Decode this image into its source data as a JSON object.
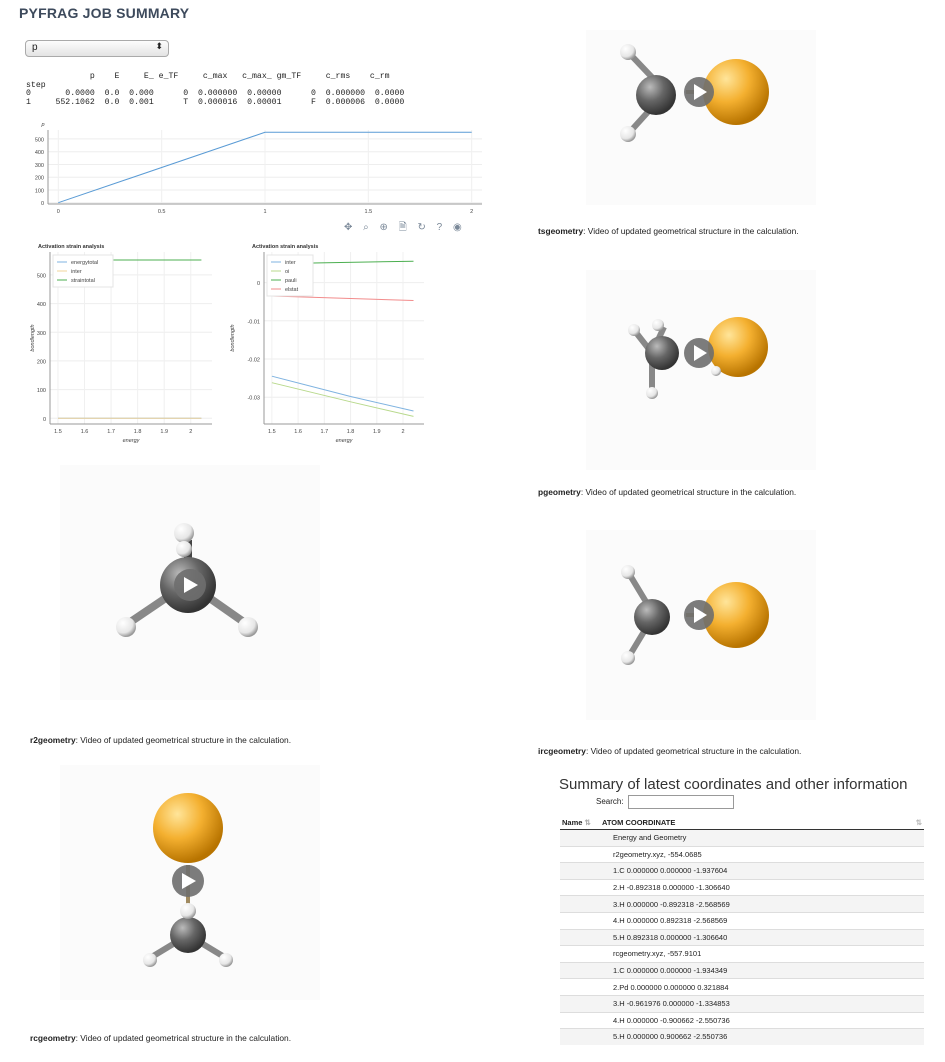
{
  "page_title": "PYFRAG JOB SUMMARY",
  "select": {
    "value": "p",
    "arrow": "⬍"
  },
  "table_text": "             p    E     E_ e_TF     c_max   c_max_ gm_TF     c_rms    c_rm\nstep                                                                   \n0       0.0000  0.0  0.000      0  0.000000  0.00000      0  0.000000  0.0000\n1     552.1062  0.0  0.001      T  0.000016  0.00001      F  0.000006  0.0000",
  "chart_data": [
    {
      "type": "line",
      "title": "",
      "ylabel": "p",
      "x": [
        0,
        1,
        2
      ],
      "series": [
        {
          "values": [
            0,
            552.1062,
            552.1062
          ],
          "color": "#5a9bd5"
        }
      ],
      "xlim": [
        -0.05,
        2.05
      ],
      "ylim": [
        -10,
        570
      ],
      "xticks": [
        "0",
        "0.5",
        "1",
        "1.5",
        "2"
      ],
      "yticks": [
        "0",
        "100",
        "200",
        "300",
        "400",
        "500"
      ]
    },
    {
      "type": "line",
      "title": "Activation strain analysis",
      "xlabel": "energy",
      "ylabel": "bondlength",
      "xticks": [
        "1.5",
        "1.6",
        "1.7",
        "1.8",
        "1.9",
        "2"
      ],
      "yticks": [
        "0",
        "100",
        "200",
        "300",
        "400",
        "500"
      ],
      "xlim": [
        1.47,
        2.08
      ],
      "ylim": [
        -20,
        580
      ],
      "series": [
        {
          "name": "energytotal",
          "color": "#7fb3e0",
          "x": [
            1.5,
            2.04
          ],
          "values": [
            0,
            0
          ]
        },
        {
          "name": "inter",
          "color": "#f2d49b",
          "x": [
            1.5,
            2.04
          ],
          "values": [
            0,
            0
          ]
        },
        {
          "name": "straintotal",
          "color": "#4caf50",
          "x": [
            1.5,
            2.04
          ],
          "values": [
            552,
            552
          ]
        }
      ]
    },
    {
      "type": "line",
      "title": "Activation strain analysis",
      "xlabel": "energy",
      "ylabel": "bondlength",
      "xticks": [
        "1.5",
        "1.6",
        "1.7",
        "1.8",
        "1.9",
        "2"
      ],
      "yticks": [
        "0",
        "-0.01",
        "-0.02",
        "-0.03"
      ],
      "xlim": [
        1.47,
        2.08
      ],
      "ylim": [
        -0.037,
        0.008
      ],
      "series": [
        {
          "name": "inter",
          "color": "#7fb3e0",
          "x": [
            1.5,
            1.8,
            2.04
          ],
          "values": [
            -0.0245,
            -0.0298,
            -0.0336
          ]
        },
        {
          "name": "oi",
          "color": "#b8d98c",
          "x": [
            1.5,
            1.8,
            2.04
          ],
          "values": [
            -0.0262,
            -0.0312,
            -0.035
          ]
        },
        {
          "name": "pauli",
          "color": "#4caf50",
          "x": [
            1.5,
            2.04
          ],
          "values": [
            0.0049,
            0.0056
          ]
        },
        {
          "name": "elstat",
          "color": "#f28b8b",
          "x": [
            1.5,
            2.04
          ],
          "values": [
            -0.0035,
            -0.0047
          ]
        }
      ]
    }
  ],
  "toolbar_icons": "✥ ⌕ ⊕ 🗎 ↻ ? ◉",
  "videos": [
    {
      "label": "tsgeometry",
      "caption": ": Video of updated geometrical structure in the calculation."
    },
    {
      "label": "pgeometry",
      "caption": ": Video of updated geometrical structure in the calculation."
    },
    {
      "label": "ircgeometry",
      "caption": ": Video of updated geometrical structure in the calculation."
    },
    {
      "label": "r2geometry",
      "caption": ": Video of updated geometrical structure in the calculation."
    },
    {
      "label": "rcgeometry",
      "caption": ": Video of updated geometrical structure in the calculation."
    }
  ],
  "summary": {
    "title": "Summary of latest coordinates and other information",
    "search_label": "Search:",
    "col_name": "Name",
    "col_coord": "ATOM COORDINATE",
    "rows": [
      "Energy and Geometry",
      "r2geometry.xyz, -554.0685",
      "1.C 0.000000 0.000000 -1.937604",
      "2.H -0.892318 0.000000 -1.306640",
      "3.H 0.000000 -0.892318 -2.568569",
      "4.H 0.000000 0.892318 -2.568569",
      "5.H 0.892318 0.000000 -1.306640",
      "rcgeometry.xyz, -557.9101",
      "1.C 0.000000 0.000000 -1.934349",
      "2.Pd 0.000000 0.000000 0.321884",
      "3.H -0.961976 0.000000 -1.334853",
      "4.H 0.000000 -0.900662 -2.550736",
      "5.H 0.000000 0.900662 -2.550736"
    ]
  }
}
